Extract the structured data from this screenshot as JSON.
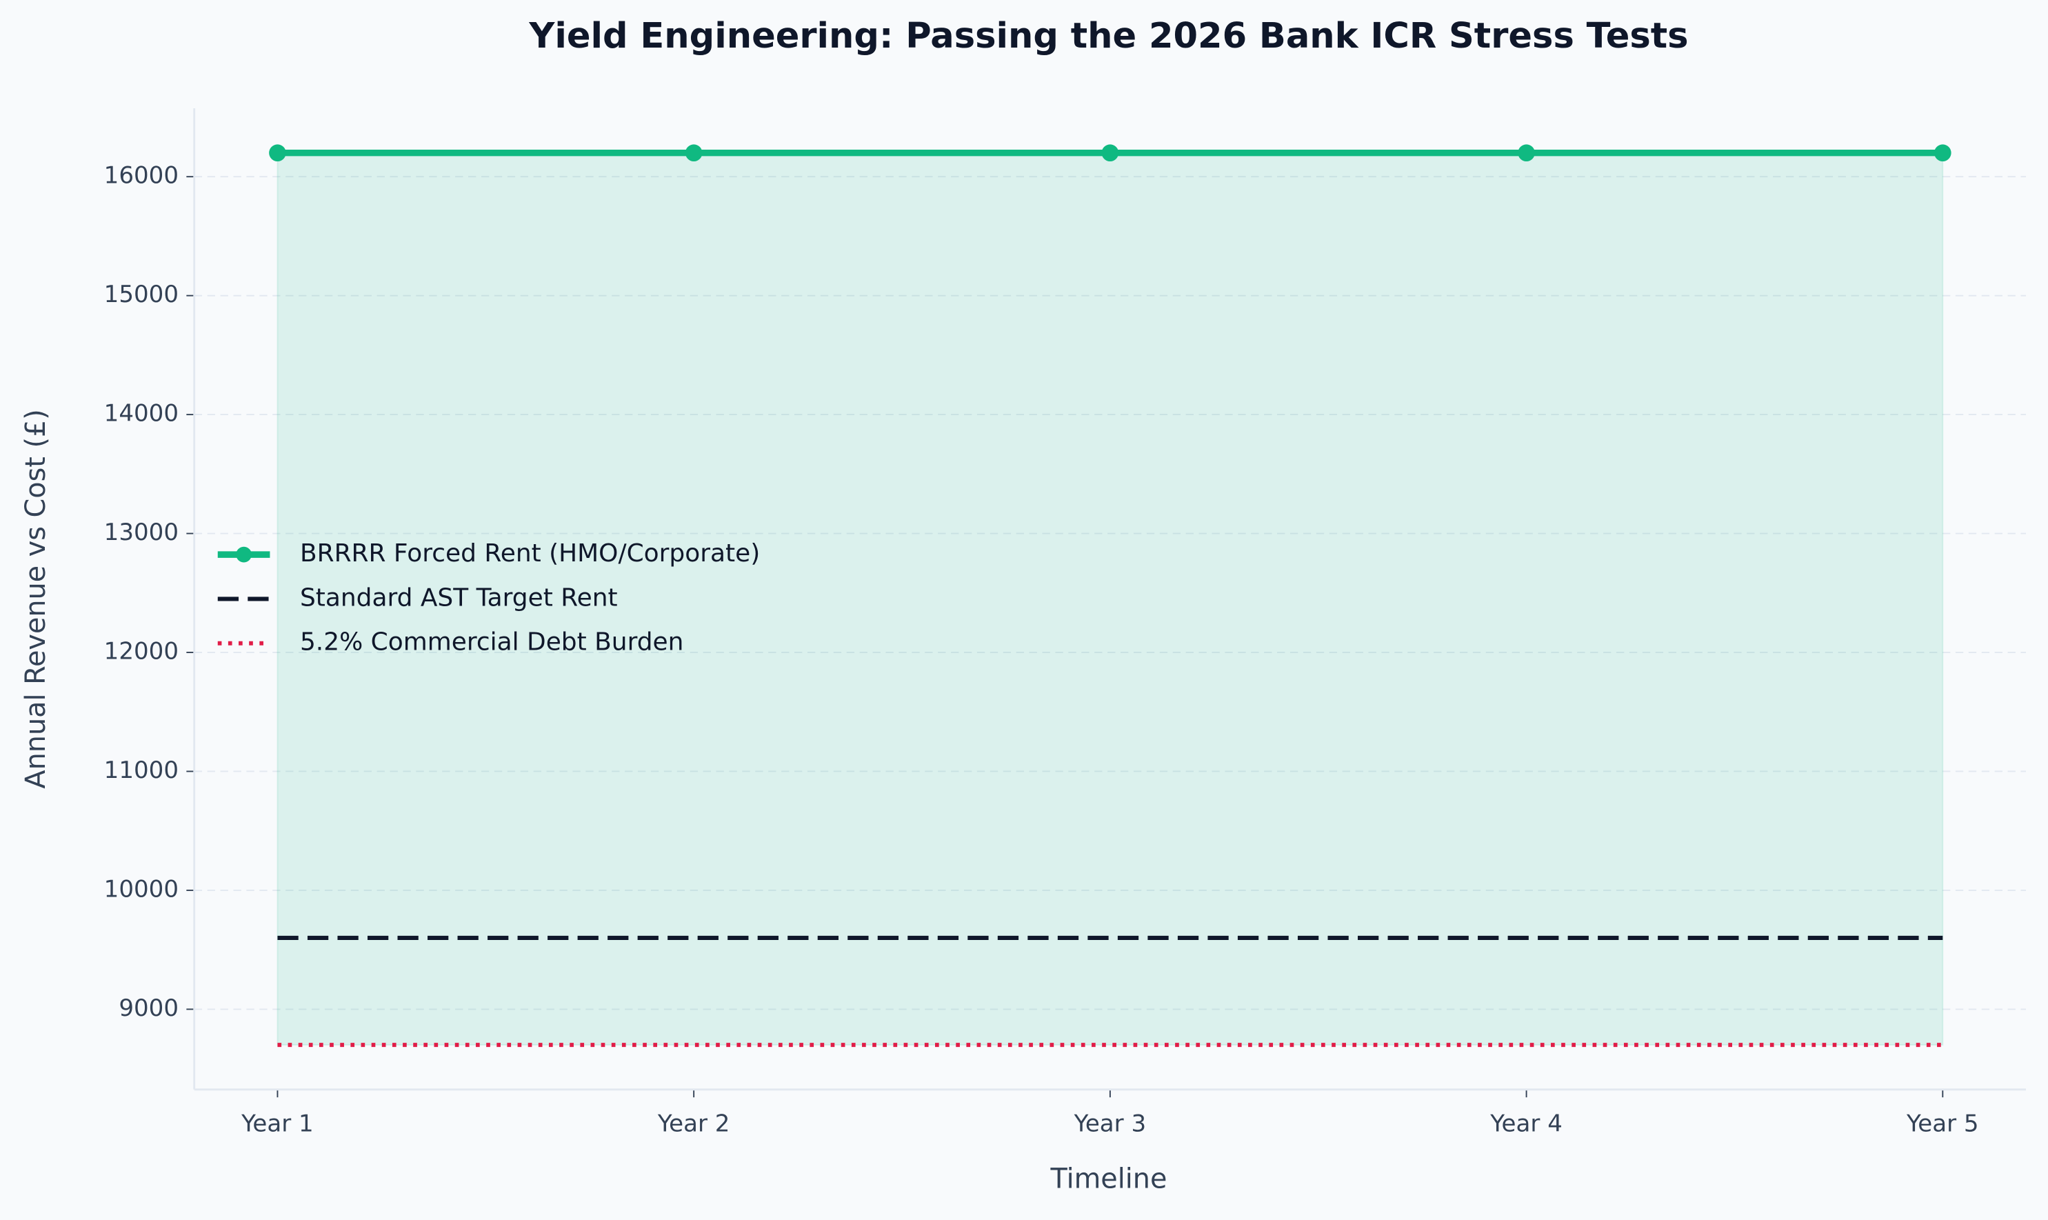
{
  "chart_data": {
    "type": "line",
    "title": "Yield Engineering: Passing the 2026 Bank ICR Stress Tests",
    "x_label": "Timeline",
    "y_label": "Annual Revenue vs Cost (£)",
    "categories": [
      "Year 1",
      "Year 2",
      "Year 3",
      "Year 4",
      "Year 5"
    ],
    "series": [
      {
        "name": "BRRRR Forced Rent (HMO/Corporate)",
        "color": "#10b981",
        "linestyle": "solid",
        "marker": true,
        "fill_to": 2,
        "values": [
          16200,
          16200,
          16200,
          16200,
          16200
        ]
      },
      {
        "name": "Standard AST Target Rent",
        "color": "#0f172a",
        "linestyle": "dashed",
        "marker": false,
        "values": [
          9600,
          9600,
          9600,
          9600,
          9600
        ]
      },
      {
        "name": "5.2% Commercial Debt Burden",
        "color": "#e11d48",
        "linestyle": "dotted",
        "marker": false,
        "values": [
          8700,
          8700,
          8700,
          8700,
          8700
        ]
      }
    ],
    "ylim": [
      8325,
      16575
    ],
    "yticks": [
      9000,
      10000,
      11000,
      12000,
      13000,
      14000,
      15000,
      16000
    ],
    "grid": true,
    "legend": "center left"
  }
}
